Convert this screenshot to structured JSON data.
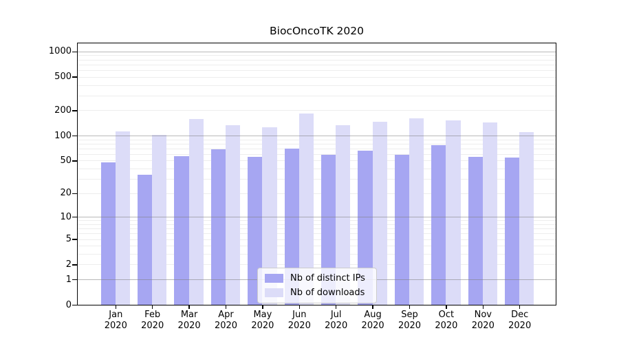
{
  "title": "BiocOncoTK 2020",
  "chart_data": {
    "type": "bar",
    "title": "BiocOncoTK 2020",
    "categories": [
      "Jan",
      "Feb",
      "Mar",
      "Apr",
      "May",
      "Jun",
      "Jul",
      "Aug",
      "Sep",
      "Oct",
      "Nov",
      "Dec"
    ],
    "category_year": "2020",
    "series": [
      {
        "name": "Nb of distinct IPs",
        "color": "#a6a6f2",
        "values": [
          48,
          34,
          57,
          69,
          55,
          70,
          59,
          66,
          59,
          77,
          56,
          54
        ]
      },
      {
        "name": "Nb of downloads",
        "color": "#dcdcf8",
        "values": [
          112,
          102,
          158,
          134,
          125,
          185,
          132,
          145,
          160,
          153,
          143,
          110
        ]
      }
    ],
    "y_axis": {
      "scale": "log1p",
      "ticks": [
        0,
        1,
        2,
        5,
        10,
        20,
        50,
        100,
        200,
        500,
        1000
      ],
      "max": 1249
    },
    "grid": {
      "major_values": [
        1,
        10,
        100,
        1000
      ],
      "minor_rule": "2-9 per decade",
      "major_color": "#7d7d7d",
      "minor_color": "#ededed"
    },
    "legend": {
      "position": "inside-bottom-center"
    }
  }
}
